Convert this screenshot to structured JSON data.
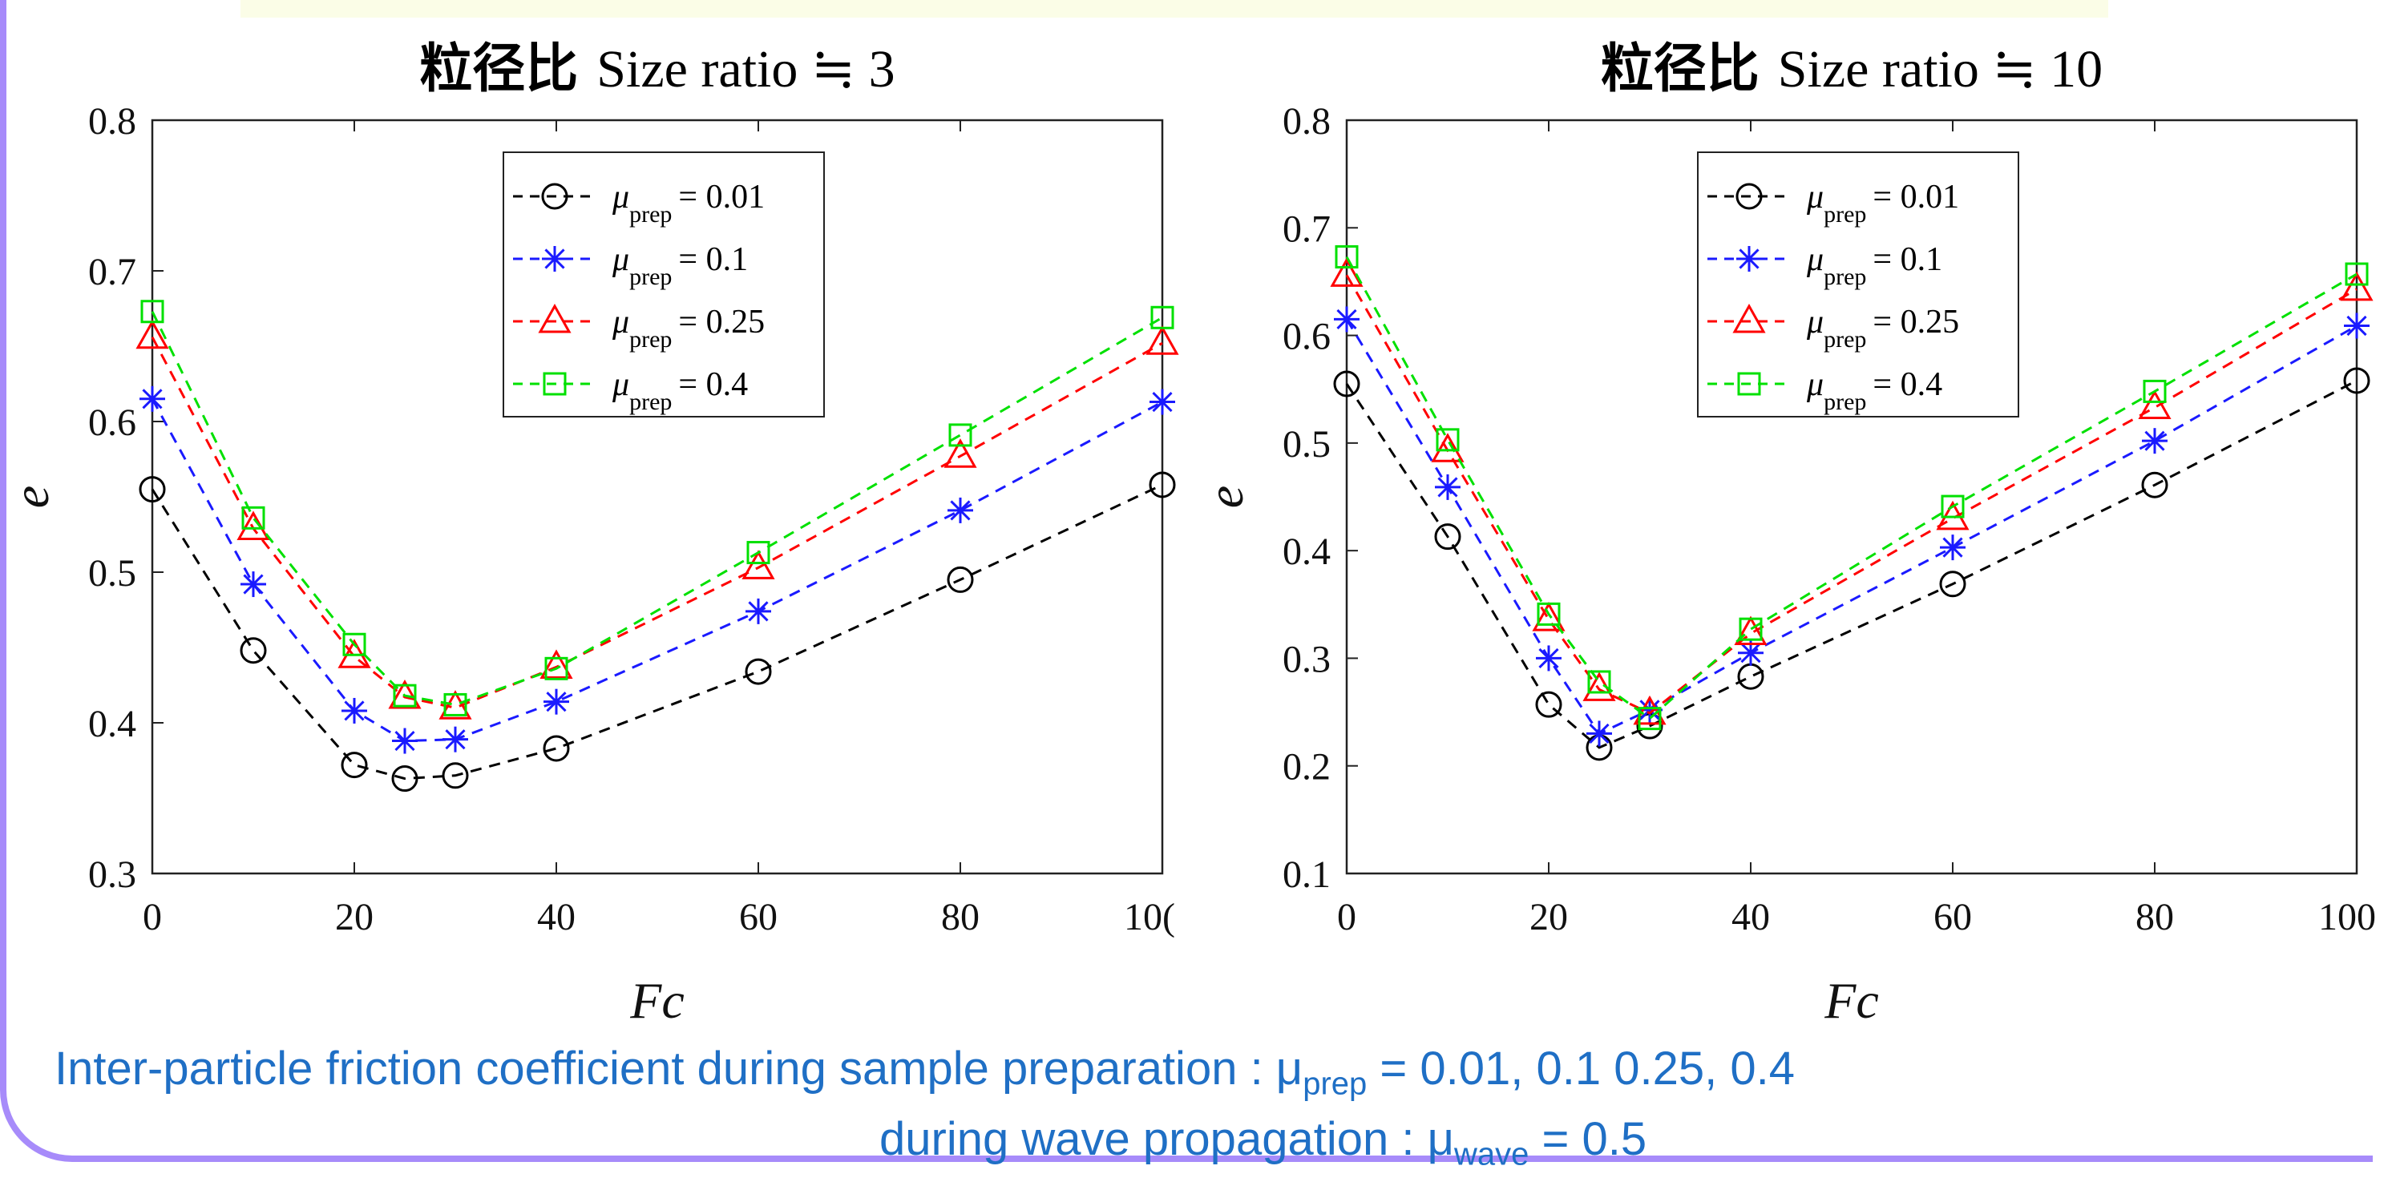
{
  "chart_data": [
    {
      "type": "line",
      "title_zh": "粒径比",
      "title_en": "Size ratio ≒ 3",
      "xlabel": "Fc",
      "ylabel": "e",
      "xlim": [
        0,
        100
      ],
      "ylim": [
        0.3,
        0.8
      ],
      "xticks": [
        "0",
        "20",
        "40",
        "60",
        "80",
        "10("
      ],
      "yticks": [
        "0.3",
        "0.4",
        "0.5",
        "0.6",
        "0.7",
        "0.8"
      ],
      "x": [
        0,
        10,
        20,
        25,
        30,
        40,
        60,
        80,
        100
      ],
      "legend_position": "top-center",
      "series": [
        {
          "name": "μprep = 0.01",
          "sym": "μ",
          "sub": "prep",
          "val": "= 0.01",
          "color": "#000000",
          "marker": "circle",
          "values": [
            0.555,
            0.448,
            0.372,
            0.363,
            0.365,
            0.383,
            0.434,
            0.495,
            0.558
          ]
        },
        {
          "name": "μprep = 0.1",
          "sym": "μ",
          "sub": "prep",
          "val": "= 0.1",
          "color": "#1a1aff",
          "marker": "star",
          "values": [
            0.615,
            0.492,
            0.408,
            0.388,
            0.389,
            0.414,
            0.474,
            0.541,
            0.613
          ]
        },
        {
          "name": "μprep = 0.25",
          "sym": "μ",
          "sub": "prep",
          "val": "= 0.25",
          "color": "#ff0000",
          "marker": "triangle",
          "values": [
            0.656,
            0.529,
            0.444,
            0.417,
            0.41,
            0.437,
            0.503,
            0.577,
            0.652
          ]
        },
        {
          "name": "μprep = 0.4",
          "sym": "μ",
          "sub": "prep",
          "val": "= 0.4",
          "color": "#00e000",
          "marker": "square",
          "values": [
            0.673,
            0.536,
            0.452,
            0.418,
            0.412,
            0.436,
            0.513,
            0.591,
            0.669
          ]
        }
      ]
    },
    {
      "type": "line",
      "title_zh": "粒径比",
      "title_en": "Size ratio ≒ 10",
      "xlabel": "Fc",
      "ylabel": "e",
      "xlim": [
        0,
        100
      ],
      "ylim": [
        0.1,
        0.8
      ],
      "xticks": [
        "0",
        "20",
        "40",
        "60",
        "80",
        "100"
      ],
      "yticks": [
        "0.1",
        "0.2",
        "0.3",
        "0.4",
        "0.5",
        "0.6",
        "0.7",
        "0.8"
      ],
      "x": [
        0,
        10,
        20,
        25,
        30,
        40,
        60,
        80,
        100
      ],
      "legend_position": "top-center",
      "series": [
        {
          "name": "μprep = 0.01",
          "sym": "μ",
          "sub": "prep",
          "val": "= 0.01",
          "color": "#000000",
          "marker": "circle",
          "values": [
            0.555,
            0.413,
            0.257,
            0.217,
            0.237,
            0.283,
            0.369,
            0.461,
            0.558
          ]
        },
        {
          "name": "μprep = 0.1",
          "sym": "μ",
          "sub": "prep",
          "val": "= 0.1",
          "color": "#1a1aff",
          "marker": "star",
          "values": [
            0.615,
            0.459,
            0.3,
            0.23,
            0.252,
            0.305,
            0.403,
            0.502,
            0.609
          ]
        },
        {
          "name": "μprep = 0.25",
          "sym": "μ",
          "sub": "prep",
          "val": "= 0.25",
          "color": "#ff0000",
          "marker": "triangle",
          "values": [
            0.656,
            0.493,
            0.336,
            0.271,
            0.249,
            0.323,
            0.43,
            0.533,
            0.643
          ]
        },
        {
          "name": "μprep = 0.4",
          "sym": "μ",
          "sub": "prep",
          "val": "= 0.4",
          "color": "#00e000",
          "marker": "square",
          "values": [
            0.673,
            0.503,
            0.341,
            0.278,
            0.244,
            0.327,
            0.441,
            0.548,
            0.657
          ]
        }
      ]
    }
  ],
  "caption": {
    "line1_prefix": "Inter-particle friction coefficient during sample preparation : μ",
    "line1_sub": "prep",
    "line1_suffix": " = 0.01, 0.1 0.25, 0.4",
    "line2_prefix": "during wave propagation   : μ",
    "line2_sub": "wave",
    "line2_suffix": " = 0.5"
  }
}
